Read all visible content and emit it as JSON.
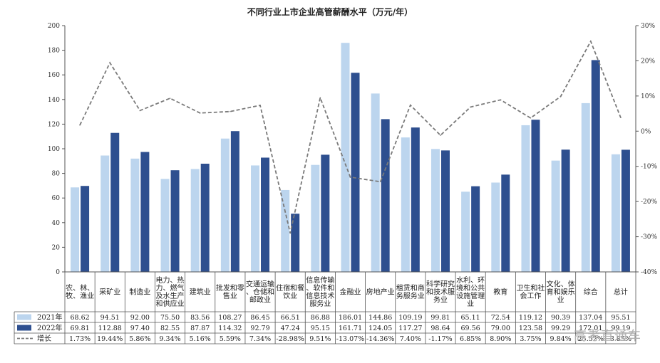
{
  "chart_data": {
    "type": "bar",
    "title": "不同行业上市企业高管薪酬水平（万元/年）",
    "categories": [
      "农、林、牧、渔业",
      "采矿业",
      "制造业",
      "电力、热力、燃气及水生产和供应业",
      "建筑业",
      "批发和零售业",
      "交通运输、仓储和邮政业",
      "住宿和餐饮业",
      "信息传输、软件和信息技术服务业",
      "金融业",
      "房地产业",
      "租赁和商务服务业",
      "科学研究和技术服务业",
      "水利、环境和公共设施管理业",
      "教育",
      "卫生和社会工作",
      "文化、体育和娱乐业",
      "综合",
      "总计"
    ],
    "series": [
      {
        "name": "2021年",
        "color": "#bcd5ee",
        "values": [
          68.62,
          94.51,
          92.0,
          75.5,
          83.56,
          108.27,
          86.45,
          66.51,
          86.88,
          186.01,
          144.86,
          109.19,
          99.81,
          65.11,
          72.54,
          119.12,
          90.39,
          137.04,
          95.51
        ],
        "labels": [
          "68.62",
          "94.51",
          "92.00",
          "75.50",
          "83.56",
          "108.27",
          "86.45",
          "66.51",
          "86.88",
          "186.01",
          "144.86",
          "109.19",
          "99.81",
          "65.11",
          "72.54",
          "119.12",
          "90.39",
          "137.04",
          "95.51"
        ]
      },
      {
        "name": "2022年",
        "color": "#2e4f8f",
        "values": [
          69.81,
          112.88,
          97.4,
          82.55,
          87.87,
          114.32,
          92.79,
          47.24,
          95.15,
          161.71,
          124.05,
          117.27,
          98.64,
          69.56,
          79.0,
          123.58,
          99.29,
          172.01,
          99.19
        ],
        "labels": [
          "69.81",
          "112.88",
          "97.40",
          "82.55",
          "87.87",
          "114.32",
          "92.79",
          "47.24",
          "95.15",
          "161.71",
          "124.05",
          "117.27",
          "98.64",
          "69.56",
          "79.00",
          "123.58",
          "99.29",
          "172.01",
          "99.19"
        ]
      },
      {
        "name": "增长",
        "color": "#7a7a7a",
        "axis": "right",
        "values": [
          1.73,
          19.44,
          5.86,
          9.34,
          5.16,
          5.59,
          7.34,
          -28.98,
          9.51,
          -13.07,
          -14.36,
          7.4,
          -1.17,
          6.85,
          8.9,
          3.75,
          9.84,
          25.52,
          3.85
        ],
        "labels": [
          "1.73%",
          "19.44%",
          "5.86%",
          "9.34%",
          "5.16%",
          "5.59%",
          "7.34%",
          "-28.98%",
          "9.51%",
          "-13.07%",
          "-14.36%",
          "7.40%",
          "-1.17%",
          "6.85%",
          "8.90%",
          "3.75%",
          "9.84%",
          "25.52%",
          "3.85%"
        ]
      }
    ],
    "ylim_left": [
      0,
      200
    ],
    "yticks_left": [
      "0",
      "20",
      "40",
      "60",
      "80",
      "100",
      "120",
      "140",
      "160",
      "180",
      "200"
    ],
    "ylim_right": [
      -40,
      30
    ],
    "yticks_right": [
      "-40%",
      "-30%",
      "-20%",
      "-10%",
      "0%",
      "10%",
      "20%",
      "30%"
    ],
    "legend_placement": "data-table-left",
    "grid": false
  },
  "watermark": "高考直通车"
}
